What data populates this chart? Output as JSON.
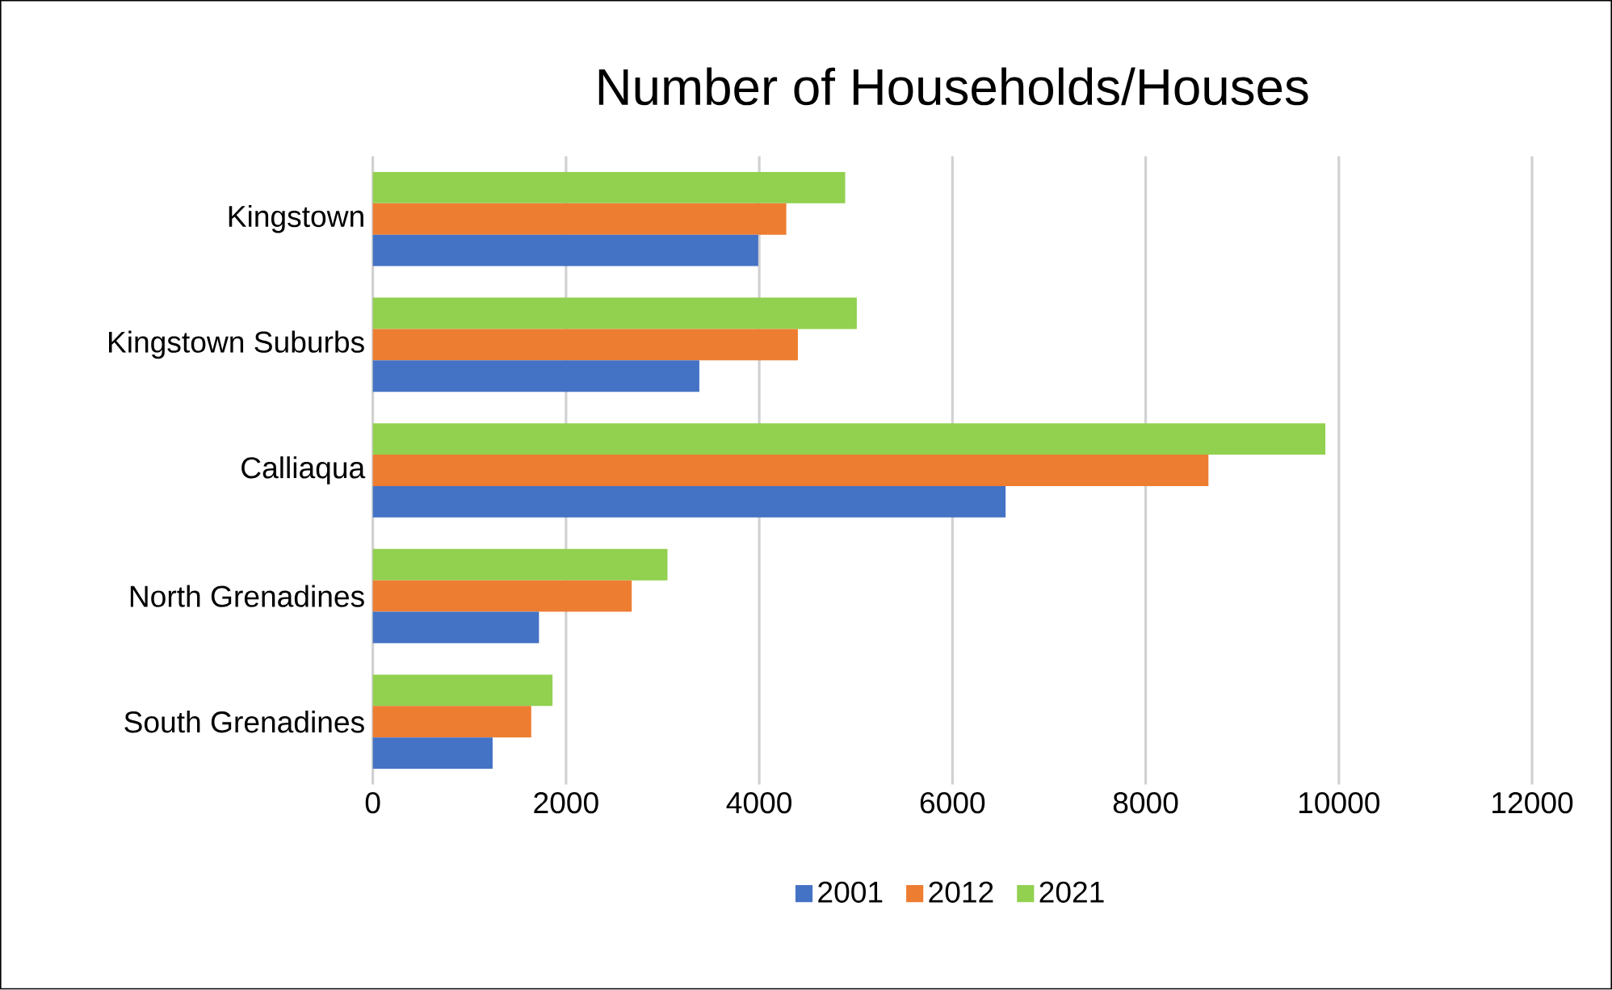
{
  "chart_data": {
    "type": "bar",
    "orientation": "horizontal",
    "title": "Number of Households/Houses",
    "categories": [
      "Kingstown",
      "Kingstown Suburbs",
      "Calliaqua",
      "North Grenadines",
      "South Grenadines"
    ],
    "series": [
      {
        "name": "2021",
        "color": "#92d050",
        "values": [
          4890,
          5010,
          9860,
          3050,
          1860
        ]
      },
      {
        "name": "2012",
        "color": "#ed7d31",
        "values": [
          4280,
          4400,
          8650,
          2680,
          1640
        ]
      },
      {
        "name": "2001",
        "color": "#4472c4",
        "values": [
          3990,
          3380,
          6550,
          1720,
          1240
        ]
      }
    ],
    "xlim": [
      0,
      12000
    ],
    "xticks": [
      0,
      2000,
      4000,
      6000,
      8000,
      10000,
      12000
    ],
    "grid": "x",
    "legend": "bottom"
  }
}
